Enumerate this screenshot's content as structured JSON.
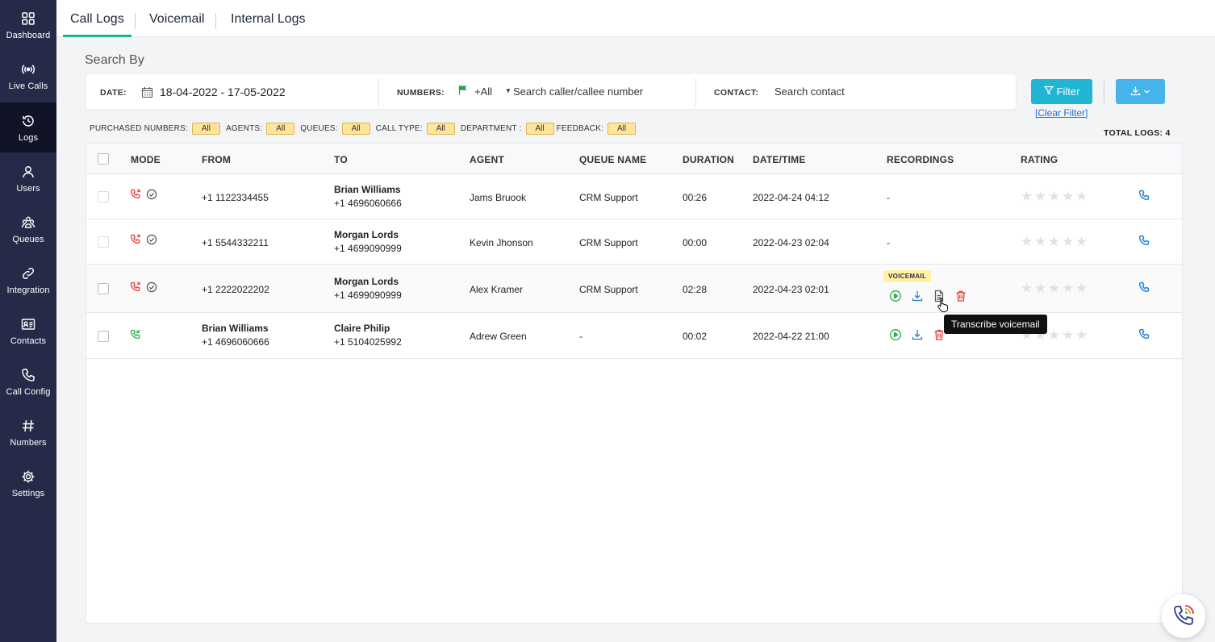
{
  "sidebar": {
    "items": [
      {
        "label": "Dashboard",
        "icon": "grid-icon"
      },
      {
        "label": "Live Calls",
        "icon": "broadcast-icon"
      },
      {
        "label": "Logs",
        "icon": "history-icon",
        "active": true
      },
      {
        "label": "Users",
        "icon": "user-icon"
      },
      {
        "label": "Queues",
        "icon": "group-icon"
      },
      {
        "label": "Integration",
        "icon": "link-icon"
      },
      {
        "label": "Contacts",
        "icon": "contact-card-icon"
      },
      {
        "label": "Call Config",
        "icon": "phone-icon"
      },
      {
        "label": "Numbers",
        "icon": "hash-icon"
      },
      {
        "label": "Settings",
        "icon": "gear-icon"
      }
    ]
  },
  "tabs": [
    {
      "label": "Call Logs",
      "active": true
    },
    {
      "label": "Voicemail"
    },
    {
      "label": "Internal Logs"
    }
  ],
  "search": {
    "title": "Search By",
    "date_label": "DATE:",
    "date_value": "18-04-2022 - 17-05-2022",
    "numbers_label": "NUMBERS:",
    "numbers_value": "+All",
    "numbers_placeholder": "Search caller/callee number",
    "contact_label": "CONTACT:",
    "contact_placeholder": "Search contact"
  },
  "actions": {
    "filter_label": "Filter",
    "clear_filter_label": "[Clear Filter]"
  },
  "filters": [
    {
      "label": "PURCHASED NUMBERS:",
      "value": "All"
    },
    {
      "label": "AGENTS:",
      "value": "All"
    },
    {
      "label": "QUEUES:",
      "value": "All"
    },
    {
      "label": "CALL TYPE:",
      "value": "All"
    },
    {
      "label": "DEPARTMENT :",
      "value": "All"
    },
    {
      "label": "FEEDBACK:",
      "value": "All"
    }
  ],
  "total_logs": "TOTAL LOGS: 4",
  "table": {
    "headers": [
      "MODE",
      "FROM",
      "TO",
      "AGENT",
      "QUEUE NAME",
      "DURATION",
      "DATE/TIME",
      "RECORDINGS",
      "RATING"
    ],
    "rows": [
      {
        "mode": "missed",
        "from_name": "",
        "from_number": "+1 1122334455",
        "to_name": "Brian Williams",
        "to_number": "+1 4696060666",
        "agent": "Jams Bruook",
        "queue": "CRM Support",
        "duration": "00:26",
        "datetime": "2022-04-24 04:12",
        "recordings": "-",
        "rating": 0
      },
      {
        "mode": "missed",
        "from_name": "",
        "from_number": "+1 5544332211",
        "to_name": "Morgan Lords",
        "to_number": "+1 4699090999",
        "agent": "Kevin Jhonson",
        "queue": "CRM Support",
        "duration": "00:00",
        "datetime": "2022-04-23 02:04",
        "recordings": "-",
        "rating": 0
      },
      {
        "mode": "missed",
        "from_name": "",
        "from_number": "+1 2222022202",
        "to_name": "Morgan Lords",
        "to_number": "+1 4699090999",
        "agent": "Alex Kramer",
        "queue": "CRM Support",
        "duration": "02:28",
        "datetime": "2022-04-23 02:01",
        "recordings": "",
        "badge": "VOICEMAIL",
        "rating": 0
      },
      {
        "mode": "incoming",
        "from_name": "Brian Williams",
        "from_number": "+1 4696060666",
        "to_name": "Claire Philip",
        "to_number": "+1 5104025992",
        "agent": "Adrew Green",
        "queue": "-",
        "duration": "00:02",
        "datetime": "2022-04-22 21:00",
        "recordings": "",
        "rating": 0
      }
    ]
  },
  "tooltip": "Transcribe voicemail",
  "colors": {
    "sidebar_bg": "#252a48",
    "accent_green": "#1ab394",
    "filter_button": "#1fb5d3",
    "download_button": "#45b4ea",
    "missed_red": "#e53935",
    "chip_yellow": "#ffe49a"
  }
}
